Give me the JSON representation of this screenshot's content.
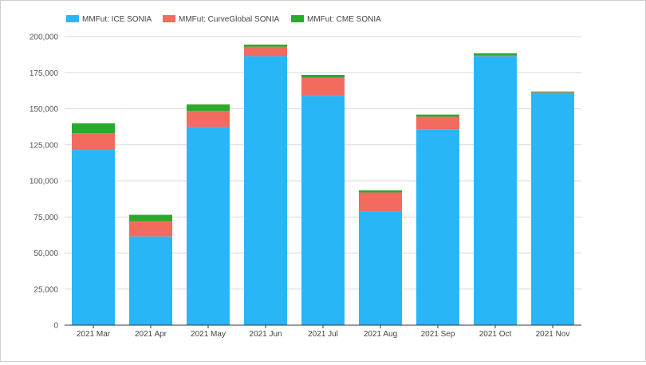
{
  "chart_data": {
    "type": "bar",
    "stacked": true,
    "title": "",
    "xlabel": "",
    "ylabel": "",
    "ylim": [
      0,
      200000
    ],
    "yticks": [
      0,
      25000,
      50000,
      75000,
      100000,
      125000,
      150000,
      175000,
      200000
    ],
    "ytick_labels": [
      "0",
      "25,000",
      "50,000",
      "75,000",
      "100,000",
      "125,000",
      "150,000",
      "175,000",
      "200,000"
    ],
    "grid": true,
    "legend_position": "top-left",
    "categories": [
      "2021 Mar",
      "2021 Apr",
      "2021 May",
      "2021 Jun",
      "2021 Jul",
      "2021 Aug",
      "2021 Sep",
      "2021 Oct",
      "2021 Nov"
    ],
    "series": [
      {
        "name": "MMFut: ICE SONIA",
        "color": "#29b6f6",
        "values": [
          121500,
          61500,
          137500,
          186500,
          159000,
          78500,
          135500,
          186500,
          161000
        ]
      },
      {
        "name": "MMFut: CurveGlobal SONIA",
        "color": "#f36b5f",
        "values": [
          11500,
          10500,
          11000,
          6500,
          12500,
          13500,
          9000,
          500,
          500
        ]
      },
      {
        "name": "MMFut: CME SONIA",
        "color": "#2aaa2a",
        "values": [
          7000,
          4500,
          4500,
          1500,
          2000,
          1500,
          1500,
          1500,
          500
        ]
      }
    ]
  }
}
